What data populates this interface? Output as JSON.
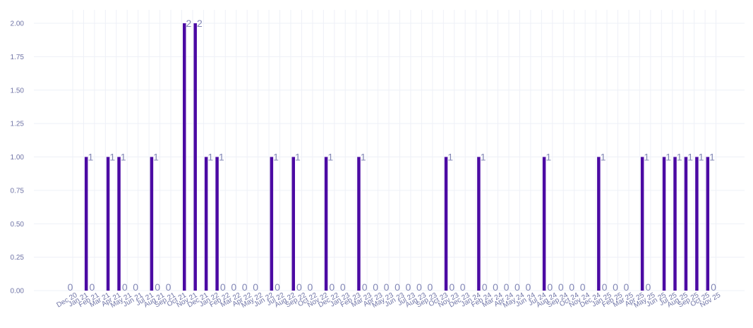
{
  "chart_data": {
    "type": "bar",
    "title": "",
    "xlabel": "",
    "ylabel": "",
    "ylim": [
      0,
      2.1
    ],
    "yticks": [
      0,
      0.25,
      0.5,
      0.75,
      1,
      1.25,
      1.5,
      1.75,
      2
    ],
    "ytick_labels": [
      "0.00",
      "0.25",
      "0.50",
      "0.75",
      "1.00",
      "1.25",
      "1.50",
      "1.75",
      "2.00"
    ],
    "grid": true,
    "legend": "none",
    "bar_color": "#4b0aa3",
    "categories": [
      "Dec 20",
      "Jan 21",
      "Feb 21",
      "Mar 21",
      "Apr 21",
      "May 21",
      "Jun 21",
      "Jul 21",
      "Aug 21",
      "Sep 21",
      "Oct 21",
      "Nov 21",
      "Dec 21",
      "Jan 22",
      "Feb 22",
      "Mar 22",
      "Apr 22",
      "May 22",
      "Jun 22",
      "Jul 22",
      "Aug 22",
      "Sep 22",
      "Oct 22",
      "Nov 22",
      "Dec 22",
      "Jan 23",
      "Feb 23",
      "Mar 23",
      "Apr 23",
      "May 23",
      "Jun 23",
      "Jul 23",
      "Aug 23",
      "Sep 23",
      "Oct 23",
      "Nov 23",
      "Dec 23",
      "Jan 24",
      "Feb 24",
      "Mar 24",
      "Apr 24",
      "May 24",
      "Jun 24",
      "Jul 24",
      "Aug 24",
      "Sep 24",
      "Oct 24",
      "Nov 24",
      "Dec 24",
      "Jan 25",
      "Feb 25",
      "Mar 25",
      "Apr 25",
      "May 25",
      "Jun 25",
      "Jul 25",
      "Aug 25",
      "Sep 25",
      "Oct 25",
      "Nov 25"
    ],
    "values": [
      0,
      1,
      0,
      1,
      1,
      0,
      0,
      1,
      0,
      0,
      2,
      2,
      1,
      1,
      0,
      0,
      0,
      0,
      1,
      0,
      1,
      0,
      0,
      1,
      0,
      0,
      1,
      0,
      0,
      0,
      0,
      0,
      0,
      0,
      1,
      0,
      0,
      1,
      0,
      0,
      0,
      0,
      0,
      1,
      0,
      0,
      0,
      0,
      1,
      0,
      0,
      0,
      1,
      0,
      1,
      1,
      1,
      1,
      1,
      0
    ]
  }
}
